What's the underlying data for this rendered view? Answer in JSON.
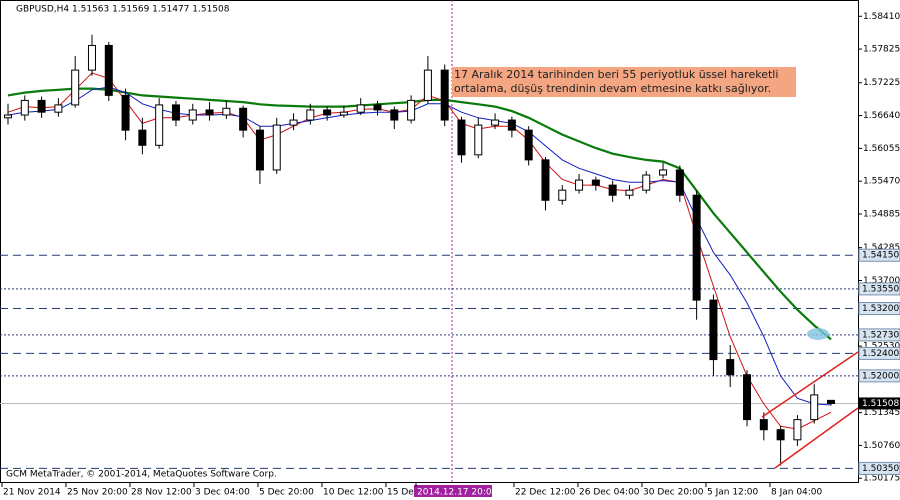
{
  "chart_data": {
    "type": "candlestick",
    "header": "GBPUSD,H4  1.51563 1.51569 1.51477 1.51508",
    "annotation": "17 Aralık 2014 tarihinden beri 55 periyotluk üssel hareketli ortalama, düşüş trendinin devam etmesine katkı sağlıyor.",
    "footer": "GCM MetaTrader, © 2001-2014, MetaQuotes Software Corp.",
    "x_labels": [
      "21 Nov 2014",
      "25 Nov 20:00",
      "28 Nov 12:00",
      "3 Dec 04:00",
      "5 Dec 20:00",
      "10 Dec 12:00",
      "15 Dec",
      "2014.12.17 20:00",
      "22 Dec 12:00",
      "26 Dec 04:00",
      "30 Dec 20:00",
      "5 Jan 12:00",
      "8 Jan 04:00"
    ],
    "candles": [
      [
        1.566,
        1.5685,
        1.5648,
        1.5665
      ],
      [
        1.5665,
        1.57,
        1.5655,
        1.5691
      ],
      [
        1.5691,
        1.5698,
        1.566,
        1.567
      ],
      [
        1.567,
        1.5695,
        1.5662,
        1.5683
      ],
      [
        1.5683,
        1.577,
        1.5678,
        1.5745
      ],
      [
        1.5745,
        1.5808,
        1.5735,
        1.5789
      ],
      [
        1.5789,
        1.5795,
        1.569,
        1.57
      ],
      [
        1.57,
        1.5712,
        1.562,
        1.5638
      ],
      [
        1.5638,
        1.566,
        1.5595,
        1.5611
      ],
      [
        1.5611,
        1.5695,
        1.5605,
        1.5683
      ],
      [
        1.5683,
        1.569,
        1.5645,
        1.5656
      ],
      [
        1.5656,
        1.5685,
        1.5648,
        1.5674
      ],
      [
        1.5674,
        1.5688,
        1.5655,
        1.5665
      ],
      [
        1.5665,
        1.569,
        1.5658,
        1.5677
      ],
      [
        1.5677,
        1.5682,
        1.5625,
        1.5638
      ],
      [
        1.5638,
        1.5645,
        1.5542,
        1.5567
      ],
      [
        1.5567,
        1.566,
        1.556,
        1.5647
      ],
      [
        1.5647,
        1.5668,
        1.5638,
        1.5656
      ],
      [
        1.5656,
        1.5685,
        1.5648,
        1.5674
      ],
      [
        1.5674,
        1.568,
        1.5655,
        1.5665
      ],
      [
        1.5665,
        1.5682,
        1.566,
        1.567
      ],
      [
        1.567,
        1.5695,
        1.5665,
        1.5683
      ],
      [
        1.5683,
        1.569,
        1.5664,
        1.5674
      ],
      [
        1.5674,
        1.568,
        1.564,
        1.5656
      ],
      [
        1.5656,
        1.57,
        1.565,
        1.5691
      ],
      [
        1.5691,
        1.577,
        1.5685,
        1.5745
      ],
      [
        1.5745,
        1.5755,
        1.5645,
        1.5656
      ],
      [
        1.5656,
        1.5662,
        1.558,
        1.5594
      ],
      [
        1.5594,
        1.566,
        1.5588,
        1.5647
      ],
      [
        1.5647,
        1.5668,
        1.564,
        1.5656
      ],
      [
        1.5656,
        1.5662,
        1.5625,
        1.5638
      ],
      [
        1.5638,
        1.5645,
        1.5575,
        1.5585
      ],
      [
        1.5585,
        1.559,
        1.5495,
        1.5513
      ],
      [
        1.5513,
        1.554,
        1.5505,
        1.5531
      ],
      [
        1.5531,
        1.556,
        1.5525,
        1.5549
      ],
      [
        1.5549,
        1.5555,
        1.553,
        1.554
      ],
      [
        1.554,
        1.5548,
        1.551,
        1.5522
      ],
      [
        1.5522,
        1.554,
        1.5515,
        1.5531
      ],
      [
        1.5531,
        1.5565,
        1.5525,
        1.5558
      ],
      [
        1.5558,
        1.558,
        1.5552,
        1.5567
      ],
      [
        1.5567,
        1.5575,
        1.551,
        1.5522
      ],
      [
        1.5522,
        1.553,
        1.53,
        1.5335
      ],
      [
        1.5335,
        1.5345,
        1.52,
        1.5229
      ],
      [
        1.5229,
        1.5255,
        1.518,
        1.5202
      ],
      [
        1.5202,
        1.521,
        1.511,
        1.5122
      ],
      [
        1.5122,
        1.5135,
        1.5085,
        1.5104
      ],
      [
        1.5104,
        1.511,
        1.504,
        1.5086
      ],
      [
        1.5086,
        1.513,
        1.5075,
        1.5122
      ],
      [
        1.5122,
        1.5185,
        1.5115,
        1.5166
      ],
      [
        1.51563,
        1.51569,
        1.51477,
        1.51508
      ]
    ],
    "series": [
      {
        "color": "#0a7a0a",
        "width": 2.2,
        "values": [
          1.57,
          1.5705,
          1.5708,
          1.571,
          1.5712,
          1.5712,
          1.571,
          1.5705,
          1.57,
          1.5698,
          1.5696,
          1.5694,
          1.5692,
          1.569,
          1.5688,
          1.5684,
          1.5682,
          1.5681,
          1.568,
          1.568,
          1.568,
          1.5682,
          1.5684,
          1.5686,
          1.5688,
          1.5692,
          1.5692,
          1.5688,
          1.5684,
          1.568,
          1.5672,
          1.566,
          1.5645,
          1.563,
          1.5618,
          1.5606,
          1.5596,
          1.559,
          1.5585,
          1.5582,
          1.557,
          1.553,
          1.549,
          1.5455,
          1.542,
          1.5385,
          1.535,
          1.5318,
          1.529,
          1.5265
        ]
      },
      {
        "color": "#d01010",
        "width": 1,
        "values": [
          1.567,
          1.568,
          1.5678,
          1.568,
          1.571,
          1.574,
          1.573,
          1.569,
          1.565,
          1.566,
          1.566,
          1.5665,
          1.5668,
          1.567,
          1.566,
          1.562,
          1.563,
          1.5645,
          1.566,
          1.5668,
          1.567,
          1.5675,
          1.5676,
          1.567,
          1.5675,
          1.57,
          1.569,
          1.565,
          1.564,
          1.5645,
          1.5645,
          1.562,
          1.558,
          1.555,
          1.554,
          1.554,
          1.5532,
          1.553,
          1.554,
          1.555,
          1.5545,
          1.545,
          1.536,
          1.527,
          1.52,
          1.515,
          1.511,
          1.5105,
          1.512,
          1.5135
        ]
      },
      {
        "color": "#1020c0",
        "width": 1,
        "values": [
          1.5665,
          1.567,
          1.5672,
          1.5675,
          1.569,
          1.571,
          1.5715,
          1.5705,
          1.5685,
          1.5675,
          1.5668,
          1.5665,
          1.5665,
          1.5666,
          1.5662,
          1.5645,
          1.5645,
          1.565,
          1.5655,
          1.566,
          1.5665,
          1.5668,
          1.567,
          1.567,
          1.5672,
          1.5685,
          1.5685,
          1.567,
          1.566,
          1.5655,
          1.565,
          1.5635,
          1.561,
          1.5585,
          1.557,
          1.556,
          1.555,
          1.5545,
          1.5545,
          1.5548,
          1.5545,
          1.548,
          1.542,
          1.538,
          1.533,
          1.527,
          1.52,
          1.516,
          1.515,
          1.5148
        ]
      }
    ],
    "ylim": [
      1.5009,
      1.587
    ],
    "yticks": [
      {
        "value": 1.5841,
        "label": "1.58410"
      },
      1.57825,
      1.57225,
      {
        "value": 1.5664,
        "label": "1.56640"
      },
      1.56055,
      {
        "value": 1.5547,
        "label": "1.55470"
      },
      1.54885,
      1.54285,
      {
        "value": 1.537,
        "label": "1.53700"
      },
      {
        "value": 1.5253,
        "label": "1.52530"
      },
      1.51345,
      {
        "value": 1.5076,
        "label": "1.50760"
      },
      1.50175
    ],
    "levels": [
      {
        "value": 1.5415,
        "label": "1.54150"
      },
      {
        "value": 1.5355,
        "label": "1.53550"
      },
      {
        "value": 1.532,
        "label": "1.53200"
      },
      {
        "value": 1.5273,
        "label": "1.52730"
      },
      {
        "value": 1.524,
        "label": "1.52400"
      },
      {
        "value": 1.52,
        "label": "1.52000"
      },
      {
        "value": 1.5035,
        "label": "1.50350"
      }
    ],
    "last_price": 1.51508,
    "bull_color": "#ffffff",
    "bear_color": "#000000",
    "level_color": "#2a3a7a"
  }
}
